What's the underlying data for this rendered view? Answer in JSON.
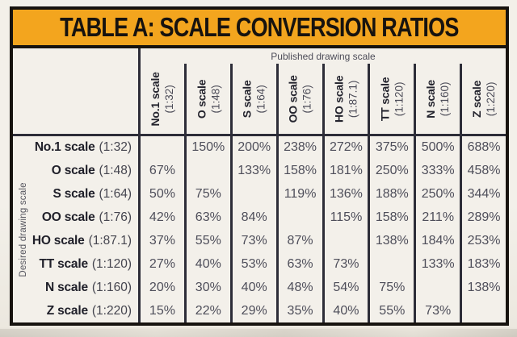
{
  "page": {
    "title": "TABLE A: SCALE CONVERSION RATIOS"
  },
  "table": {
    "published_axis_label": "Published drawing scale",
    "desired_axis_label": "Desired drawing scale",
    "columns": [
      {
        "name": "No.1 scale",
        "ratio": "(1:32)"
      },
      {
        "name": "O scale",
        "ratio": "(1:48)"
      },
      {
        "name": "S scale",
        "ratio": "(1:64)"
      },
      {
        "name": "OO scale",
        "ratio": "(1:76)"
      },
      {
        "name": "HO scale",
        "ratio": "(1:87.1)"
      },
      {
        "name": "TT scale",
        "ratio": "(1:120)"
      },
      {
        "name": "N scale",
        "ratio": "(1:160)"
      },
      {
        "name": "Z scale",
        "ratio": "(1:220)"
      }
    ],
    "rows": [
      {
        "name": "No.1 scale",
        "ratio": "(1:32)",
        "values": [
          "",
          "150%",
          "200%",
          "238%",
          "272%",
          "375%",
          "500%",
          "688%"
        ]
      },
      {
        "name": "O scale",
        "ratio": "(1:48)",
        "values": [
          "67%",
          "",
          "133%",
          "158%",
          "181%",
          "250%",
          "333%",
          "458%"
        ]
      },
      {
        "name": "S scale",
        "ratio": "(1:64)",
        "values": [
          "50%",
          "75%",
          "",
          "119%",
          "136%",
          "188%",
          "250%",
          "344%"
        ]
      },
      {
        "name": "OO scale",
        "ratio": "(1:76)",
        "values": [
          "42%",
          "63%",
          "84%",
          "",
          "115%",
          "158%",
          "211%",
          "289%"
        ]
      },
      {
        "name": "HO scale",
        "ratio": "(1:87.1)",
        "values": [
          "37%",
          "55%",
          "73%",
          "87%",
          "",
          "138%",
          "184%",
          "253%"
        ]
      },
      {
        "name": "TT scale",
        "ratio": "(1:120)",
        "values": [
          "27%",
          "40%",
          "53%",
          "63%",
          "73%",
          "",
          "133%",
          "183%"
        ]
      },
      {
        "name": "N scale",
        "ratio": "(1:160)",
        "values": [
          "20%",
          "30%",
          "40%",
          "48%",
          "54%",
          "75%",
          "",
          "138%"
        ]
      },
      {
        "name": "Z scale",
        "ratio": "(1:220)",
        "values": [
          "15%",
          "22%",
          "29%",
          "35%",
          "40%",
          "55%",
          "73%",
          ""
        ]
      }
    ]
  },
  "colors": {
    "banner_yellow": "#f3a51e",
    "border_black": "#17130f",
    "grid_line": "#2d2d38",
    "value_text": "#4e4e5a",
    "paper": "#f3f0ea"
  }
}
